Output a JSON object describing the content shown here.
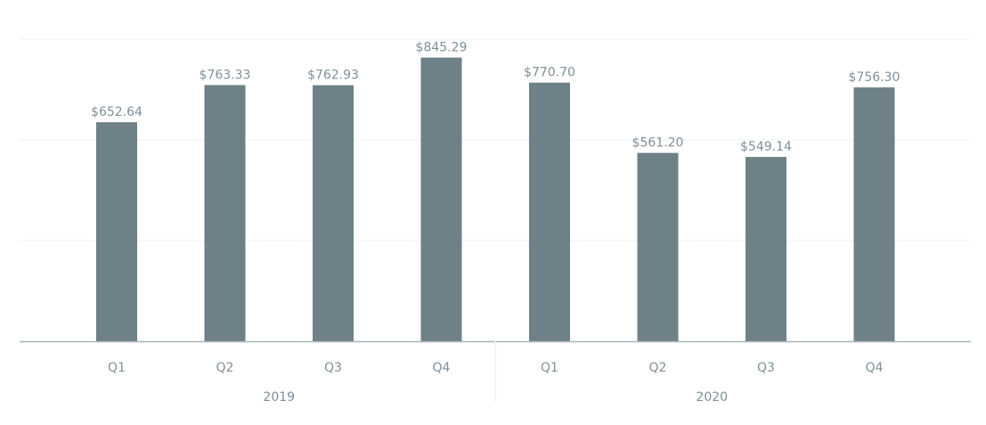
{
  "chart_data": {
    "type": "bar",
    "title": "",
    "xlabel": "",
    "ylabel": "",
    "ylim": [
      0,
      900
    ],
    "grid": true,
    "categories": [
      "Q1",
      "Q2",
      "Q3",
      "Q4",
      "Q1",
      "Q2",
      "Q3",
      "Q4"
    ],
    "groups": [
      {
        "label": "2019",
        "count": 4
      },
      {
        "label": "2020",
        "count": 4
      }
    ],
    "values": [
      652.64,
      763.33,
      762.93,
      845.29,
      770.7,
      561.2,
      549.14,
      756.3
    ],
    "data_labels": [
      "$652.64",
      "$763.33",
      "$762.93",
      "$845.29",
      "$770.70",
      "$561.20",
      "$549.14",
      "$756.30"
    ],
    "colors": {
      "bar": "#6e8088",
      "label": "#7f9099",
      "axis": "#a7b4bb",
      "grid": "#eef1f3"
    }
  }
}
